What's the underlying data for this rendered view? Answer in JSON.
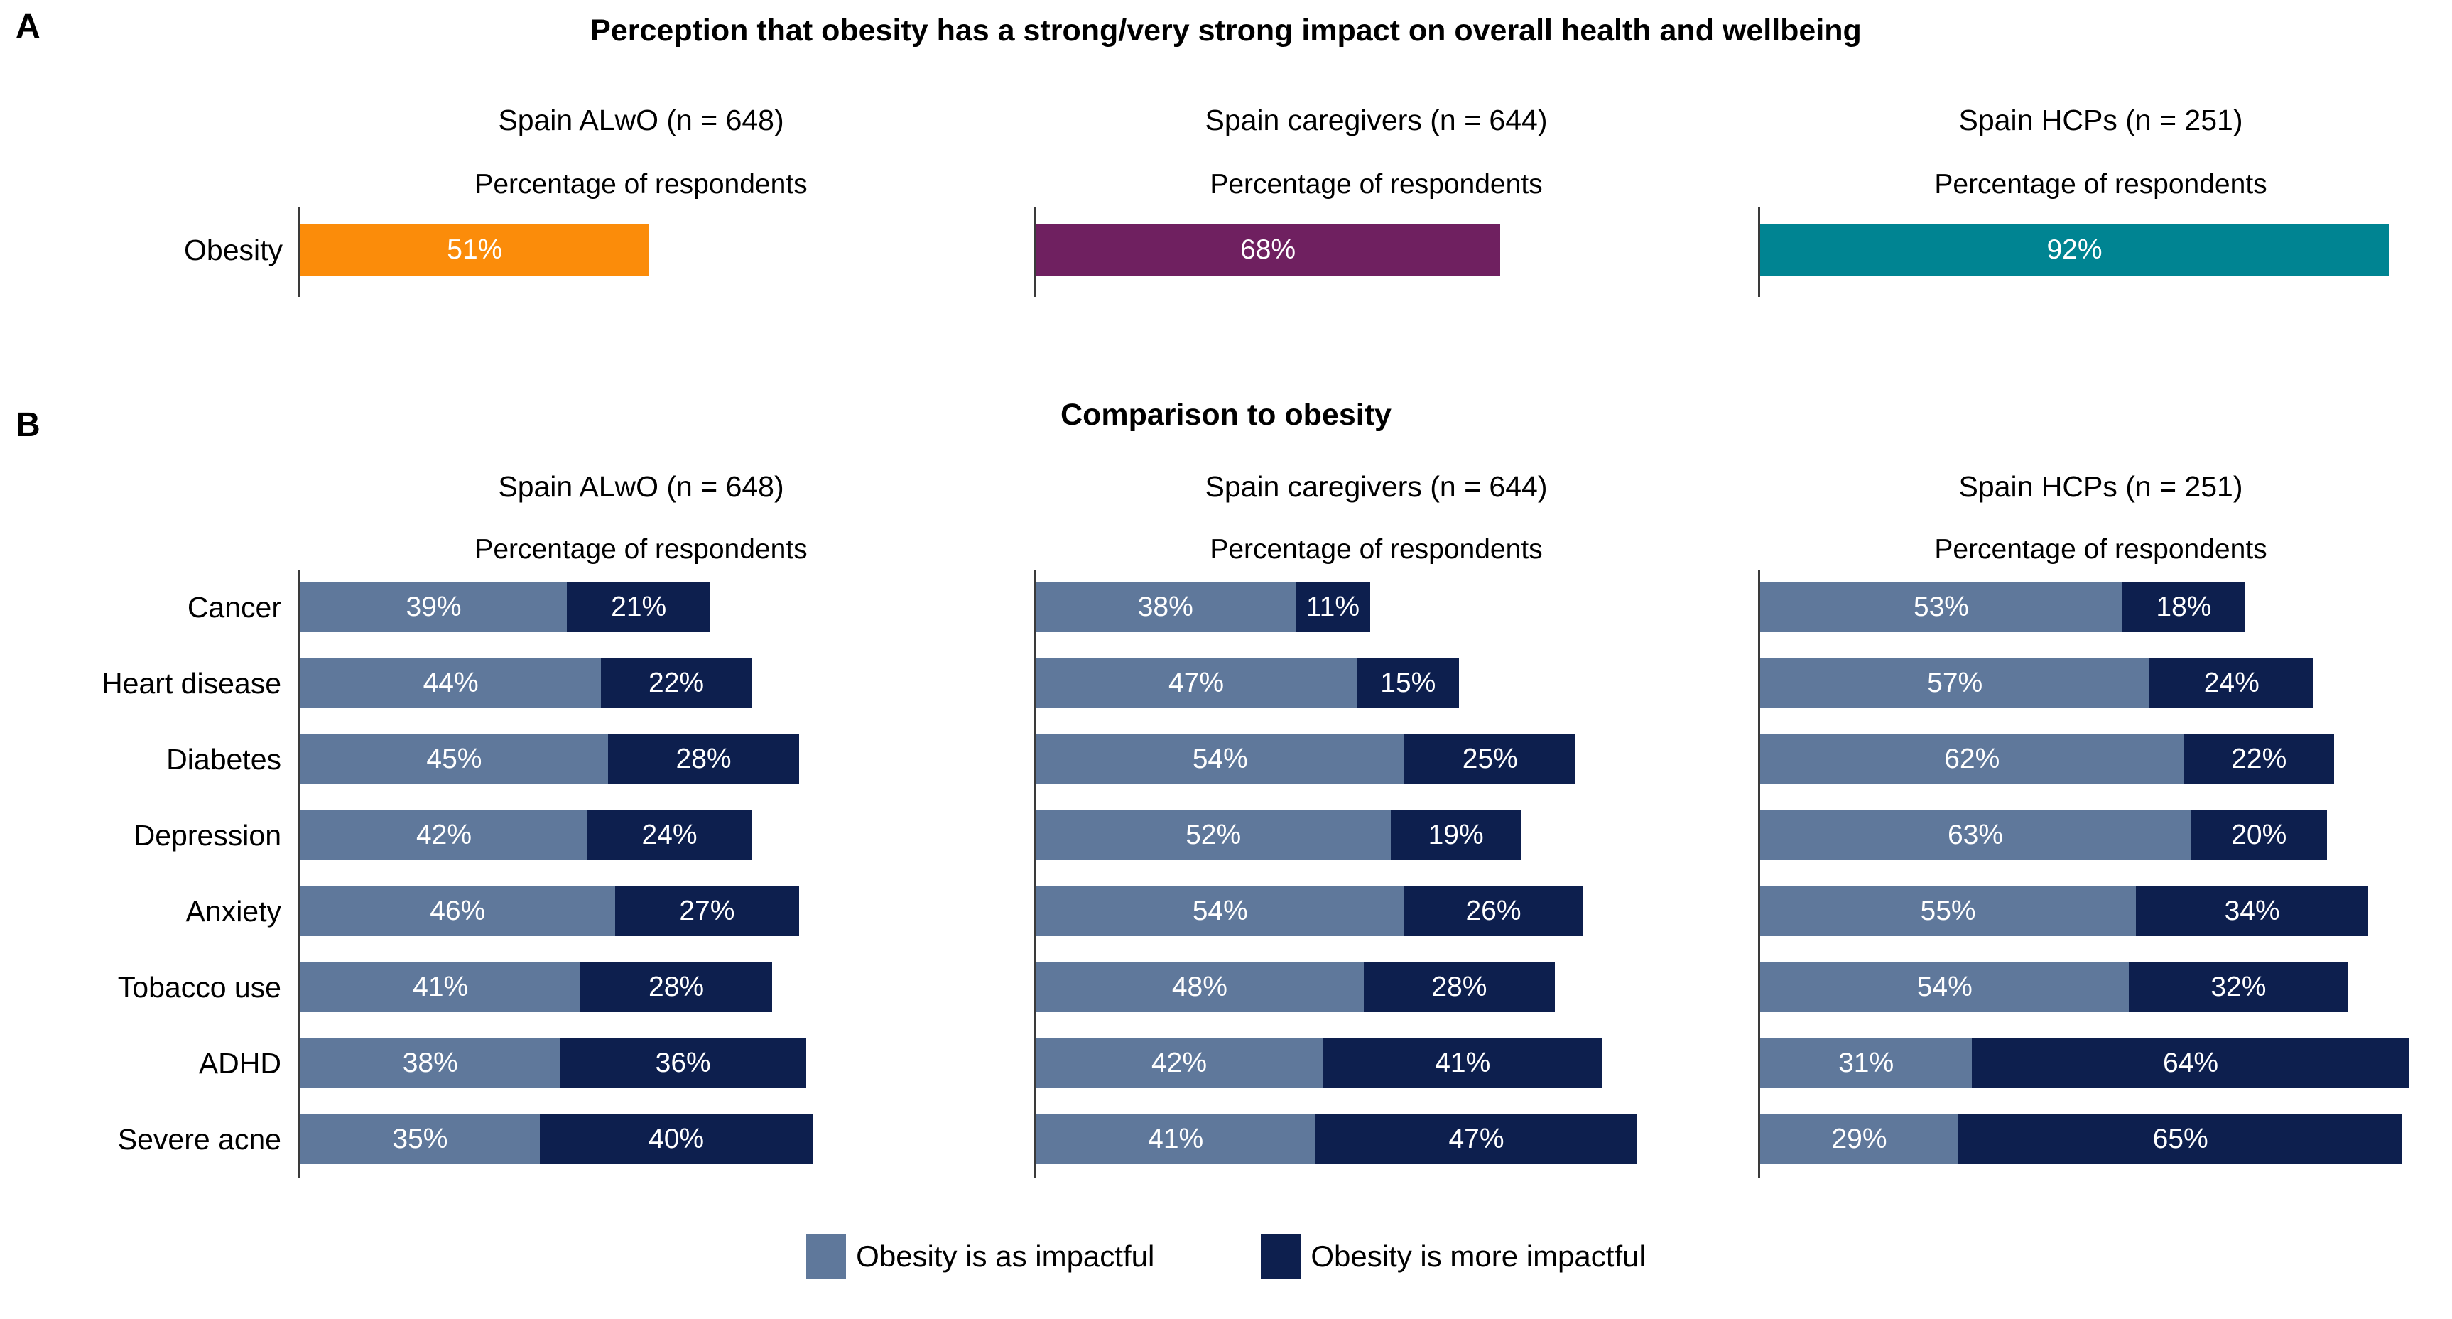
{
  "chart_data": [
    {
      "id": "panel_a",
      "type": "bar",
      "orientation": "horizontal",
      "panel_label": "A",
      "title": "Perception that obesity has a strong/very strong impact on overall health and wellbeing",
      "axis_label": "Percentage of respondents",
      "categories": [
        "Obesity"
      ],
      "xlim": [
        0,
        100
      ],
      "unit": "%",
      "grid": false,
      "groups": [
        {
          "name": "Spain ALwO (n = 648)",
          "color": "#FB8C0A",
          "values": [
            51
          ],
          "labels": [
            "51%"
          ]
        },
        {
          "name": "Spain caregivers (n = 644)",
          "color": "#6F2060",
          "values": [
            68
          ],
          "labels": [
            "68%"
          ]
        },
        {
          "name": "Spain HCPs (n = 251)",
          "color": "#008492",
          "values": [
            92
          ],
          "labels": [
            "92%"
          ]
        }
      ]
    },
    {
      "id": "panel_b",
      "type": "stacked_bar",
      "orientation": "horizontal",
      "panel_label": "B",
      "title": "Comparison to obesity",
      "axis_label": "Percentage of respondents",
      "categories": [
        "Cancer",
        "Heart disease",
        "Diabetes",
        "Depression",
        "Anxiety",
        "Tobacco use",
        "ADHD",
        "Severe acne"
      ],
      "xlim": [
        0,
        100
      ],
      "unit": "%",
      "grid": false,
      "series_names": [
        "Obesity is as impactful",
        "Obesity is more impactful"
      ],
      "series_colors": [
        "#5F789B",
        "#0D1F4E"
      ],
      "groups": [
        {
          "name": "Spain ALwO (n = 648)",
          "series": [
            {
              "name": "Obesity is as impactful",
              "values": [
                39,
                44,
                45,
                42,
                46,
                41,
                38,
                35
              ]
            },
            {
              "name": "Obesity is more impactful",
              "values": [
                21,
                22,
                28,
                24,
                27,
                28,
                36,
                40
              ]
            }
          ]
        },
        {
          "name": "Spain caregivers (n = 644)",
          "series": [
            {
              "name": "Obesity is as impactful",
              "values": [
                38,
                47,
                54,
                52,
                54,
                48,
                42,
                41
              ]
            },
            {
              "name": "Obesity is more impactful",
              "values": [
                11,
                15,
                25,
                19,
                26,
                28,
                41,
                47
              ]
            }
          ]
        },
        {
          "name": "Spain HCPs (n = 251)",
          "series": [
            {
              "name": "Obesity is as impactful",
              "values": [
                53,
                57,
                62,
                63,
                55,
                54,
                31,
                29
              ]
            },
            {
              "name": "Obesity is more impactful",
              "values": [
                18,
                24,
                22,
                20,
                34,
                32,
                64,
                65
              ]
            }
          ]
        }
      ],
      "legend_position": "bottom"
    }
  ],
  "legend": {
    "items": [
      {
        "label": "Obesity is as impactful",
        "color": "#5F789B"
      },
      {
        "label": "Obesity is more impactful",
        "color": "#0D1F4E"
      }
    ]
  },
  "colors": {
    "alwo_accent": "#FB8C0A",
    "caregivers_accent": "#6F2060",
    "hcps_accent": "#008492",
    "as_impactful": "#5F789B",
    "more_impactful": "#0D1F4E",
    "axis_line": "#3a3a3a",
    "bar_text": "#ffffff"
  }
}
